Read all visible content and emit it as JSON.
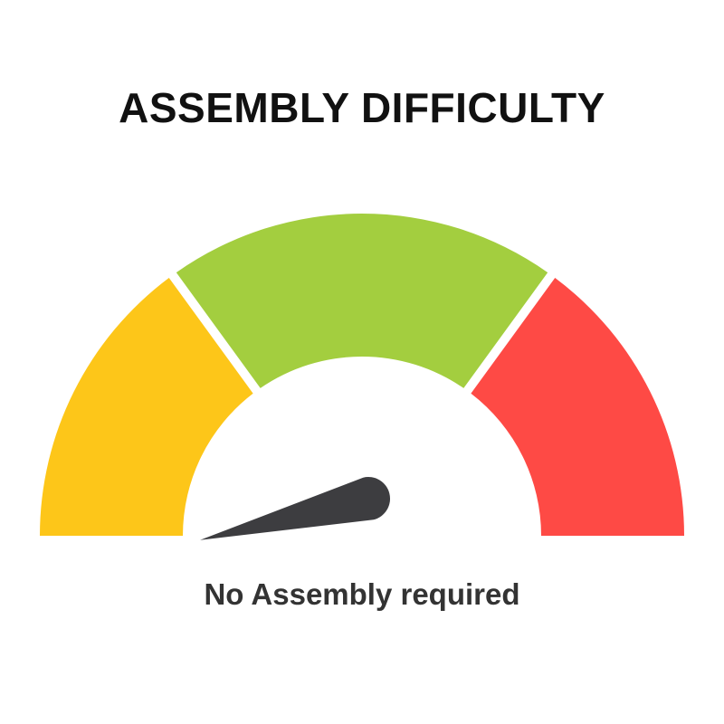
{
  "title": "ASSEMBLY DIFFICULTY",
  "caption": "No Assembly required",
  "gauge": {
    "value_fraction": 0.0,
    "segments": [
      {
        "color": "#FDC619",
        "from": 0.0,
        "to": 0.3
      },
      {
        "color": "#A3CE3F",
        "from": 0.3,
        "to": 0.7
      },
      {
        "color": "#FE4A45",
        "from": 0.7,
        "to": 1.0
      }
    ],
    "needle_color": "#3D3D40"
  }
}
